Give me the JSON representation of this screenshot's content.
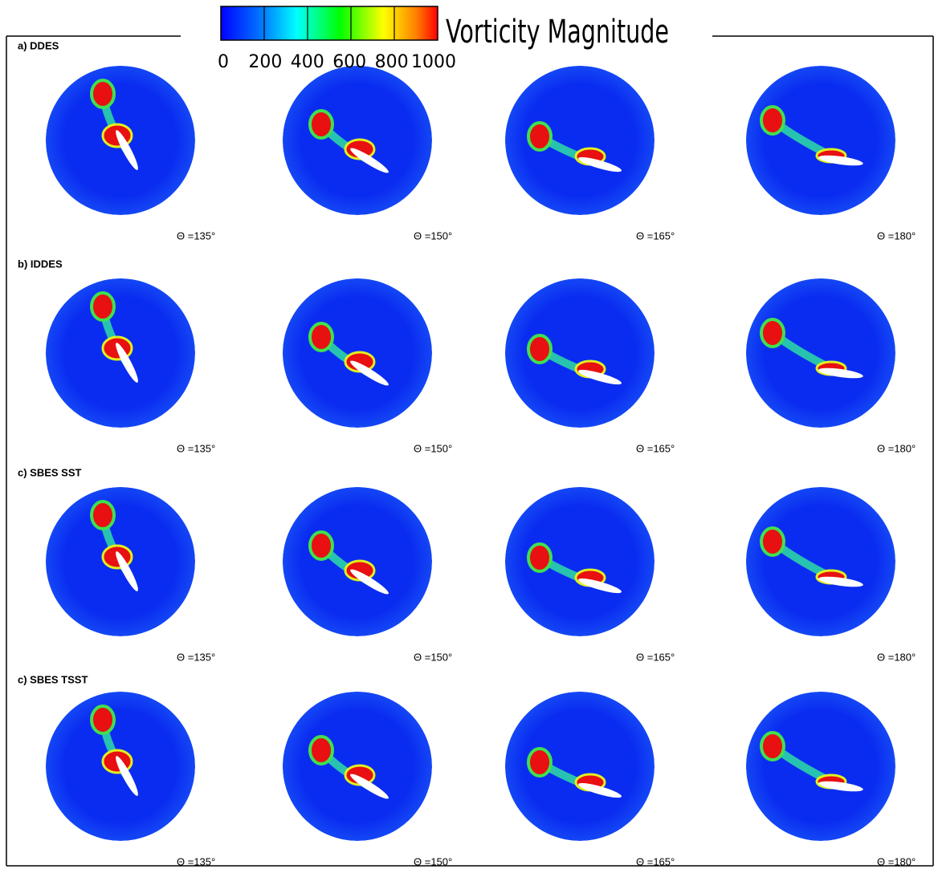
{
  "colorbar": {
    "title": "Vorticity Magnitude",
    "ticks": [
      0,
      200,
      400,
      600,
      800,
      1000
    ]
  },
  "rows": [
    {
      "label": "a) DDES",
      "panels": [
        "Θ =135°",
        "Θ =150°",
        "Θ =165°",
        "Θ =180°"
      ]
    },
    {
      "label": "b) IDDES",
      "panels": [
        "Θ =135°",
        "Θ =150°",
        "Θ =165°",
        "Θ =180°"
      ]
    },
    {
      "label": "c) SBES SST",
      "panels": [
        "Θ =135°",
        "Θ =150°",
        "Θ =165°",
        "Θ =180°"
      ]
    },
    {
      "label": "c) SBES TSST",
      "panels": [
        "Θ =135°",
        "Θ =150°",
        "Θ =165°",
        "Θ =180°"
      ]
    }
  ]
}
